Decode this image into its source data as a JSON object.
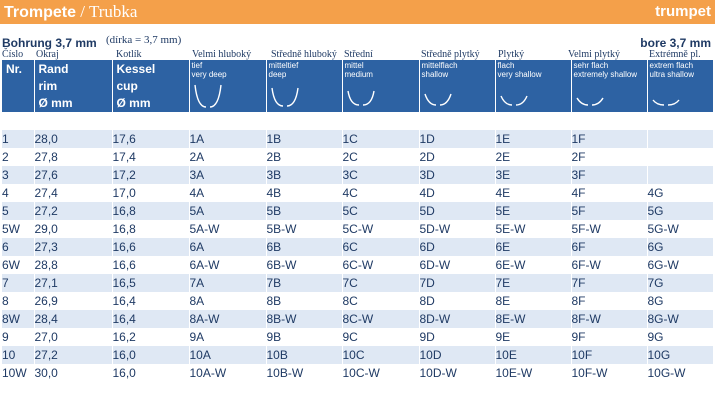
{
  "banner": {
    "title_de": "Trompete",
    "slash": " / ",
    "title_cz": "Trubka",
    "title_en": "trumpet"
  },
  "bore": {
    "de": "Bohrung 3,7 mm",
    "cz": "(dírka = 3,7 mm)",
    "en": "bore 3,7 mm"
  },
  "cz_headers": [
    "Číslo",
    "Okraj",
    "Kotlík",
    "Velmi hluboký",
    "Středně hluboký",
    "Střední",
    "Středně plytký",
    "Plytký",
    "Velmi plytký",
    "Extrémně pl."
  ],
  "headers": {
    "nr": "Nr.",
    "rand": [
      "Rand",
      "rim",
      "Ø mm"
    ],
    "kessel": [
      "Kessel",
      "cup",
      "Ø mm"
    ],
    "depths": [
      {
        "de": "tief",
        "en": "very deep"
      },
      {
        "de": "mitteltief",
        "en": "deep"
      },
      {
        "de": "mittel",
        "en": "medium"
      },
      {
        "de": "mittelflach",
        "en": "shallow"
      },
      {
        "de": "flach",
        "en": "very shallow"
      },
      {
        "de": "sehr flach",
        "en": "extremely shallow"
      },
      {
        "de": "extrem flach",
        "en": "ultra shallow"
      }
    ]
  },
  "rows": [
    [
      "1",
      "28,0",
      "17,6",
      "1A",
      "1B",
      "1C",
      "1D",
      "1E",
      "1F",
      ""
    ],
    [
      "2",
      "27,8",
      "17,4",
      "2A",
      "2B",
      "2C",
      "2D",
      "2E",
      "2F",
      ""
    ],
    [
      "3",
      "27,6",
      "17,2",
      "3A",
      "3B",
      "3C",
      "3D",
      "3E",
      "3F",
      ""
    ],
    [
      "4",
      "27,4",
      "17,0",
      "4A",
      "4B",
      "4C",
      "4D",
      "4E",
      "4F",
      "4G"
    ],
    [
      "5",
      "27,2",
      "16,8",
      "5A",
      "5B",
      "5C",
      "5D",
      "5E",
      "5F",
      "5G"
    ],
    [
      "5W",
      "29,0",
      "16,8",
      "5A-W",
      "5B-W",
      "5C-W",
      "5D-W",
      "5E-W",
      "5F-W",
      "5G-W"
    ],
    [
      "6",
      "27,3",
      "16,6",
      "6A",
      "6B",
      "6C",
      "6D",
      "6E",
      "6F",
      "6G"
    ],
    [
      "6W",
      "28,8",
      "16,6",
      "6A-W",
      "6B-W",
      "6C-W",
      "6D-W",
      "6E-W",
      "6F-W",
      "6G-W"
    ],
    [
      "7",
      "27,1",
      "16,5",
      "7A",
      "7B",
      "7C",
      "7D",
      "7E",
      "7F",
      "7G"
    ],
    [
      "8",
      "26,9",
      "16,4",
      "8A",
      "8B",
      "8C",
      "8D",
      "8E",
      "8F",
      "8G"
    ],
    [
      "8W",
      "28,4",
      "16,4",
      "8A-W",
      "8B-W",
      "8C-W",
      "8D-W",
      "8E-W",
      "8F-W",
      "8G-W"
    ],
    [
      "9",
      "27,0",
      "16,2",
      "9A",
      "9B",
      "9C",
      "9D",
      "9E",
      "9F",
      "9G"
    ],
    [
      "10",
      "27,2",
      "16,0",
      "10A",
      "10B",
      "10C",
      "10D",
      "10E",
      "10F",
      "10G"
    ],
    [
      "10W",
      "30,0",
      "16,0",
      "10A-W",
      "10B-W",
      "10C-W",
      "10D-W",
      "10E-W",
      "10F-W",
      "10G-W"
    ]
  ]
}
